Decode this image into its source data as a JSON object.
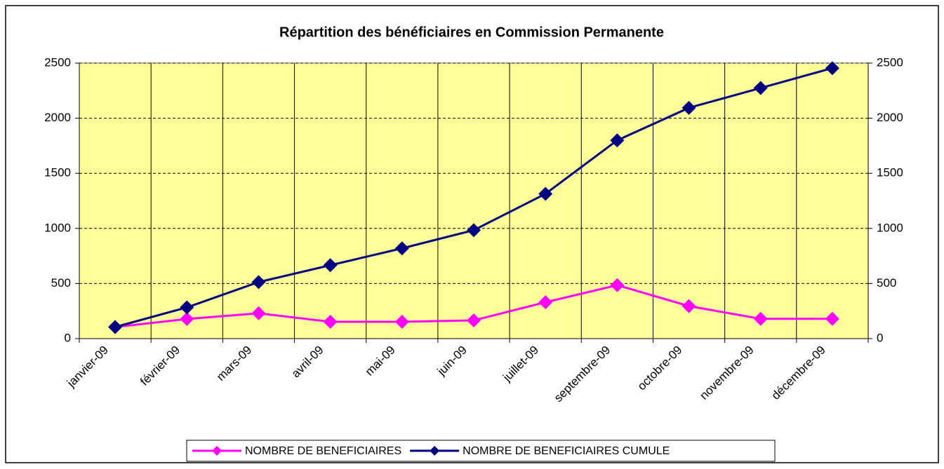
{
  "chart_data": {
    "type": "line",
    "title": "Répartition des bénéficiaires en Commission Permanente",
    "categories": [
      "janvier-09",
      "février-09",
      "mars-09",
      "avril-09",
      "mai-09",
      "juin-09",
      "juillet-09",
      "septembre-09",
      "octobre-09",
      "novembre-09",
      "décembre-09"
    ],
    "series": [
      {
        "name": "NOMBRE DE BENEFICIAIRES",
        "color": "#ff00ff",
        "values": [
          105,
          178,
          230,
          153,
          153,
          165,
          330,
          485,
          295,
          180,
          180
        ]
      },
      {
        "name": "NOMBRE DE BENEFICIAIRES CUMULE",
        "color": "#000080",
        "axis": "y2",
        "values": [
          105,
          283,
          513,
          666,
          819,
          984,
          1314,
          1799,
          2094,
          2274,
          2454
        ]
      }
    ],
    "ylim": [
      0,
      2500
    ],
    "yticks": [
      0,
      500,
      1000,
      1500,
      2000,
      2500
    ],
    "y2lim": [
      0,
      2500
    ],
    "y2ticks": [
      0,
      500,
      1000,
      1500,
      2000,
      2500
    ],
    "grid": true,
    "plot_background": "#ffff99",
    "legend": "bottom"
  }
}
